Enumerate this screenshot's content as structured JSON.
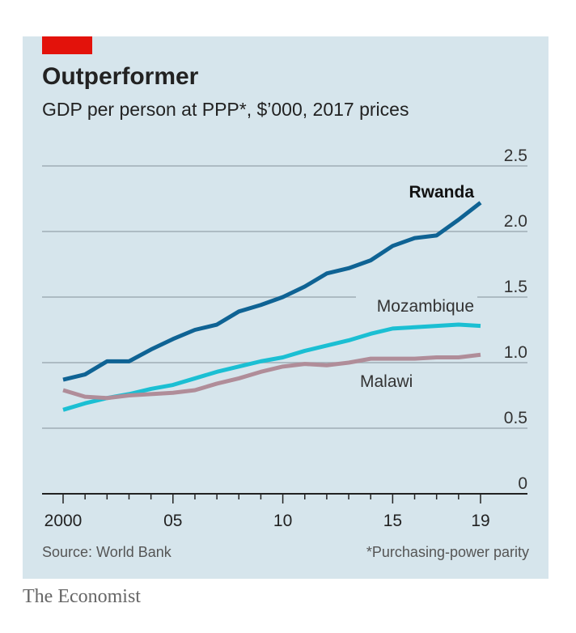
{
  "header": {
    "title": "Outperformer",
    "subtitle": "GDP per person at PPP*, $’000, 2017 prices"
  },
  "footer": {
    "source": "Source: World Bank",
    "note": "*Purchasing-power parity",
    "brand": "The Economist"
  },
  "colors": {
    "accent": "#e3120b",
    "background": "#d6e5ec",
    "rwanda": "#0f6394",
    "mozambique": "#1bbfd3",
    "malawi": "#b08d99"
  },
  "chart_data": {
    "type": "line",
    "title": "Outperformer",
    "subtitle": "GDP per person at PPP*, $’000, 2017 prices",
    "x": [
      2000,
      2001,
      2002,
      2003,
      2004,
      2005,
      2006,
      2007,
      2008,
      2009,
      2010,
      2011,
      2012,
      2013,
      2014,
      2015,
      2016,
      2017,
      2018,
      2019
    ],
    "xticks": [
      {
        "value": 2000,
        "label": "2000"
      },
      {
        "value": 2005,
        "label": "05"
      },
      {
        "value": 2010,
        "label": "10"
      },
      {
        "value": 2015,
        "label": "15"
      },
      {
        "value": 2019,
        "label": "19"
      }
    ],
    "yticks": [
      {
        "value": 0,
        "label": "0"
      },
      {
        "value": 0.5,
        "label": "0.5"
      },
      {
        "value": 1,
        "label": "1.0"
      },
      {
        "value": 1.5,
        "label": "1.5"
      },
      {
        "value": 2,
        "label": "2.0"
      },
      {
        "value": 2.5,
        "label": "2.5"
      }
    ],
    "ylim": [
      0,
      2.5
    ],
    "xlim": [
      2000,
      2019
    ],
    "grid": true,
    "series": [
      {
        "name": "Rwanda",
        "color": "#0f6394",
        "values": [
          0.87,
          0.91,
          1.01,
          1.01,
          1.1,
          1.18,
          1.25,
          1.29,
          1.39,
          1.44,
          1.5,
          1.58,
          1.68,
          1.72,
          1.78,
          1.89,
          1.95,
          1.97,
          2.09,
          2.22
        ]
      },
      {
        "name": "Mozambique",
        "color": "#1bbfd3",
        "values": [
          0.64,
          0.69,
          0.73,
          0.76,
          0.8,
          0.83,
          0.88,
          0.93,
          0.97,
          1.01,
          1.04,
          1.09,
          1.13,
          1.17,
          1.22,
          1.26,
          1.27,
          1.28,
          1.29,
          1.28
        ]
      },
      {
        "name": "Malawi",
        "color": "#b08d99",
        "values": [
          0.79,
          0.74,
          0.73,
          0.75,
          0.76,
          0.77,
          0.79,
          0.84,
          0.88,
          0.93,
          0.97,
          0.99,
          0.98,
          1.0,
          1.03,
          1.03,
          1.03,
          1.04,
          1.04,
          1.06
        ]
      }
    ]
  }
}
